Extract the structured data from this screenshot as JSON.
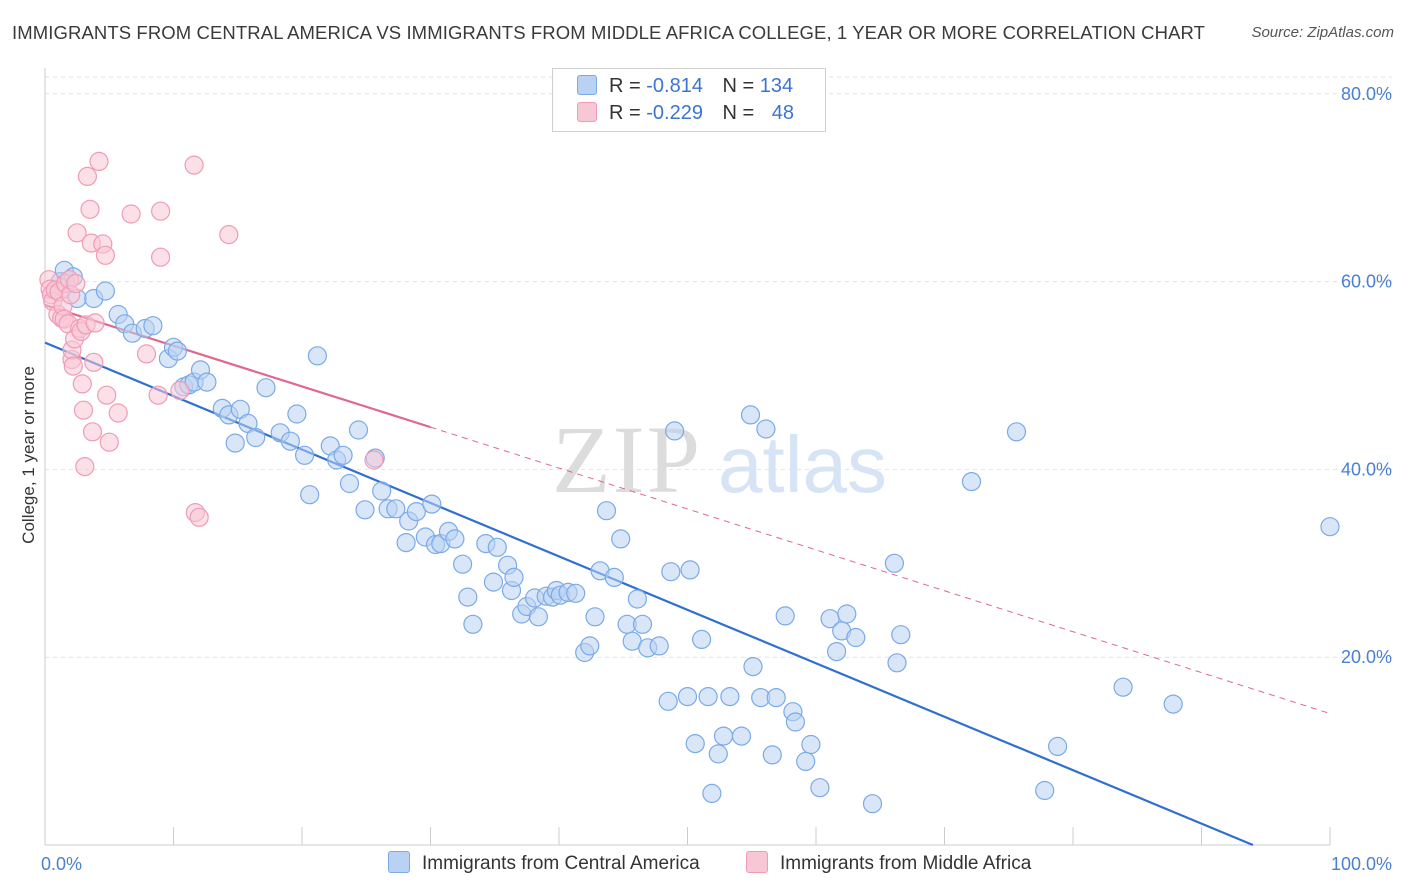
{
  "title": "IMMIGRANTS FROM CENTRAL AMERICA VS IMMIGRANTS FROM MIDDLE AFRICA COLLEGE, 1 YEAR OR MORE CORRELATION CHART",
  "source": "Source: ZipAtlas.com",
  "watermark": {
    "zip": "ZIP",
    "atlas": "atlas"
  },
  "legend": {
    "rows": [
      {
        "r_label": "R =",
        "r_value": "-0.814",
        "n_label": "N =",
        "n_value": "134"
      },
      {
        "r_label": "R =",
        "r_value": "-0.229",
        "n_label": "N =",
        "n_value": "48"
      }
    ]
  },
  "chart_data": {
    "type": "scatter",
    "title": "IMMIGRANTS FROM CENTRAL AMERICA VS IMMIGRANTS FROM MIDDLE AFRICA COLLEGE, 1 YEAR OR MORE CORRELATION CHART",
    "xlabel": "",
    "ylabel": "College, 1 year or more",
    "xlim": [
      0,
      100
    ],
    "ylim": [
      0,
      82
    ],
    "x_tick_labels": [
      "0.0%",
      "100.0%"
    ],
    "y_ticks": [
      20,
      40,
      60,
      80
    ],
    "y_tick_labels": [
      "20.0%",
      "40.0%",
      "60.0%",
      "80.0%"
    ],
    "grid": true,
    "legend_position": "top-center",
    "series": [
      {
        "name": "Immigrants from Central America",
        "color": "#7aaae8",
        "fill": "#b9d2f3",
        "line_color": "#2f6fd1",
        "trend": {
          "x": [
            0,
            94
          ],
          "y": [
            53.5,
            0
          ]
        },
        "trend_dashed": null,
        "points": [
          [
            1.2,
            60.0
          ],
          [
            1.5,
            61.2
          ],
          [
            2.2,
            60.5
          ],
          [
            2.5,
            58.2
          ],
          [
            3.8,
            58.2
          ],
          [
            4.7,
            59.0
          ],
          [
            5.7,
            56.5
          ],
          [
            6.2,
            55.5
          ],
          [
            6.8,
            54.5
          ],
          [
            7.8,
            55.0
          ],
          [
            8.4,
            55.3
          ],
          [
            9.6,
            51.8
          ],
          [
            10.0,
            53.0
          ],
          [
            10.3,
            52.6
          ],
          [
            10.8,
            48.8
          ],
          [
            11.2,
            49.0
          ],
          [
            11.6,
            49.3
          ],
          [
            12.1,
            50.6
          ],
          [
            12.6,
            49.3
          ],
          [
            13.8,
            46.5
          ],
          [
            14.3,
            45.8
          ],
          [
            14.8,
            42.8
          ],
          [
            15.2,
            46.4
          ],
          [
            15.8,
            44.9
          ],
          [
            16.4,
            43.4
          ],
          [
            17.2,
            48.7
          ],
          [
            18.3,
            43.9
          ],
          [
            19.1,
            43.0
          ],
          [
            19.6,
            45.9
          ],
          [
            20.2,
            41.5
          ],
          [
            20.6,
            37.3
          ],
          [
            21.2,
            52.1
          ],
          [
            22.2,
            42.5
          ],
          [
            22.7,
            41.0
          ],
          [
            23.2,
            41.5
          ],
          [
            23.7,
            38.5
          ],
          [
            24.4,
            44.2
          ],
          [
            24.9,
            35.7
          ],
          [
            25.7,
            41.2
          ],
          [
            26.2,
            37.7
          ],
          [
            26.7,
            35.8
          ],
          [
            27.3,
            35.8
          ],
          [
            28.1,
            32.2
          ],
          [
            28.3,
            34.5
          ],
          [
            28.9,
            35.5
          ],
          [
            29.6,
            32.8
          ],
          [
            30.1,
            36.3
          ],
          [
            30.4,
            32.0
          ],
          [
            30.8,
            32.1
          ],
          [
            31.4,
            33.4
          ],
          [
            31.9,
            32.6
          ],
          [
            32.5,
            29.9
          ],
          [
            32.9,
            26.4
          ],
          [
            33.3,
            23.5
          ],
          [
            34.3,
            32.1
          ],
          [
            34.9,
            28.0
          ],
          [
            35.2,
            31.7
          ],
          [
            36.0,
            29.8
          ],
          [
            36.3,
            27.1
          ],
          [
            36.5,
            28.5
          ],
          [
            37.1,
            24.6
          ],
          [
            37.5,
            25.4
          ],
          [
            38.1,
            26.3
          ],
          [
            38.4,
            24.3
          ],
          [
            39.0,
            26.5
          ],
          [
            39.5,
            26.4
          ],
          [
            39.8,
            27.1
          ],
          [
            40.1,
            26.6
          ],
          [
            40.7,
            26.9
          ],
          [
            41.3,
            26.8
          ],
          [
            42.0,
            20.5
          ],
          [
            42.4,
            21.2
          ],
          [
            42.8,
            24.3
          ],
          [
            43.2,
            29.2
          ],
          [
            43.7,
            35.6
          ],
          [
            44.3,
            28.5
          ],
          [
            44.8,
            32.6
          ],
          [
            45.3,
            23.5
          ],
          [
            45.7,
            21.7
          ],
          [
            46.1,
            26.2
          ],
          [
            46.5,
            23.5
          ],
          [
            46.9,
            21.0
          ],
          [
            47.8,
            21.2
          ],
          [
            48.5,
            15.3
          ],
          [
            48.7,
            29.1
          ],
          [
            49.0,
            44.1
          ],
          [
            50.0,
            15.8
          ],
          [
            50.2,
            29.3
          ],
          [
            50.6,
            10.8
          ],
          [
            51.1,
            21.9
          ],
          [
            51.6,
            15.8
          ],
          [
            51.9,
            5.5
          ],
          [
            52.4,
            9.7
          ],
          [
            52.8,
            11.6
          ],
          [
            53.3,
            15.8
          ],
          [
            54.2,
            11.6
          ],
          [
            54.9,
            45.8
          ],
          [
            55.1,
            19.0
          ],
          [
            55.7,
            15.7
          ],
          [
            56.1,
            44.3
          ],
          [
            56.6,
            9.6
          ],
          [
            56.9,
            15.7
          ],
          [
            57.6,
            24.4
          ],
          [
            58.2,
            14.2
          ],
          [
            58.4,
            13.1
          ],
          [
            59.2,
            8.9
          ],
          [
            59.6,
            10.7
          ],
          [
            60.3,
            6.1
          ],
          [
            61.1,
            24.1
          ],
          [
            61.6,
            20.6
          ],
          [
            62.0,
            22.8
          ],
          [
            62.4,
            24.6
          ],
          [
            63.1,
            22.1
          ],
          [
            64.4,
            4.4
          ],
          [
            66.1,
            30.0
          ],
          [
            66.3,
            19.4
          ],
          [
            66.6,
            22.4
          ],
          [
            72.1,
            38.7
          ],
          [
            75.6,
            44.0
          ],
          [
            77.8,
            5.8
          ],
          [
            78.8,
            10.5
          ],
          [
            83.9,
            16.8
          ],
          [
            87.8,
            15.0
          ],
          [
            100.0,
            33.9
          ]
        ]
      },
      {
        "name": "Immigrants from Middle Africa",
        "color": "#f19bb6",
        "fill": "#f8c7d6",
        "line_color": "#e0678f",
        "trend": {
          "x": [
            0,
            30
          ],
          "y": [
            57.5,
            44.5
          ]
        },
        "trend_dashed": {
          "x": [
            30,
            100
          ],
          "y": [
            44.5,
            14.0
          ]
        },
        "points": [
          [
            0.3,
            60.2
          ],
          [
            0.4,
            59.2
          ],
          [
            0.5,
            58.6
          ],
          [
            0.6,
            57.9
          ],
          [
            0.8,
            59.1
          ],
          [
            1.0,
            56.5
          ],
          [
            1.1,
            58.9
          ],
          [
            1.3,
            56.1
          ],
          [
            1.4,
            57.4
          ],
          [
            1.5,
            56.0
          ],
          [
            1.6,
            59.8
          ],
          [
            1.8,
            55.5
          ],
          [
            1.9,
            60.2
          ],
          [
            2.0,
            58.6
          ],
          [
            2.1,
            51.7
          ],
          [
            2.1,
            52.7
          ],
          [
            2.2,
            51.0
          ],
          [
            2.3,
            53.9
          ],
          [
            2.4,
            59.8
          ],
          [
            2.5,
            65.2
          ],
          [
            2.7,
            55.0
          ],
          [
            2.8,
            54.7
          ],
          [
            2.9,
            49.1
          ],
          [
            3.0,
            46.3
          ],
          [
            3.1,
            40.3
          ],
          [
            3.2,
            55.4
          ],
          [
            3.3,
            71.2
          ],
          [
            3.5,
            67.7
          ],
          [
            3.6,
            64.1
          ],
          [
            3.7,
            44.0
          ],
          [
            3.8,
            51.4
          ],
          [
            3.9,
            55.6
          ],
          [
            4.2,
            72.8
          ],
          [
            4.5,
            64.0
          ],
          [
            4.7,
            62.8
          ],
          [
            4.8,
            47.9
          ],
          [
            5.0,
            42.9
          ],
          [
            5.7,
            46.0
          ],
          [
            6.7,
            67.2
          ],
          [
            7.9,
            52.3
          ],
          [
            8.8,
            47.9
          ],
          [
            9.0,
            62.6
          ],
          [
            9.0,
            67.5
          ],
          [
            10.5,
            48.4
          ],
          [
            11.6,
            72.4
          ],
          [
            11.7,
            35.4
          ],
          [
            12.0,
            34.9
          ],
          [
            14.3,
            65.0
          ],
          [
            25.6,
            41.0
          ]
        ]
      }
    ]
  }
}
